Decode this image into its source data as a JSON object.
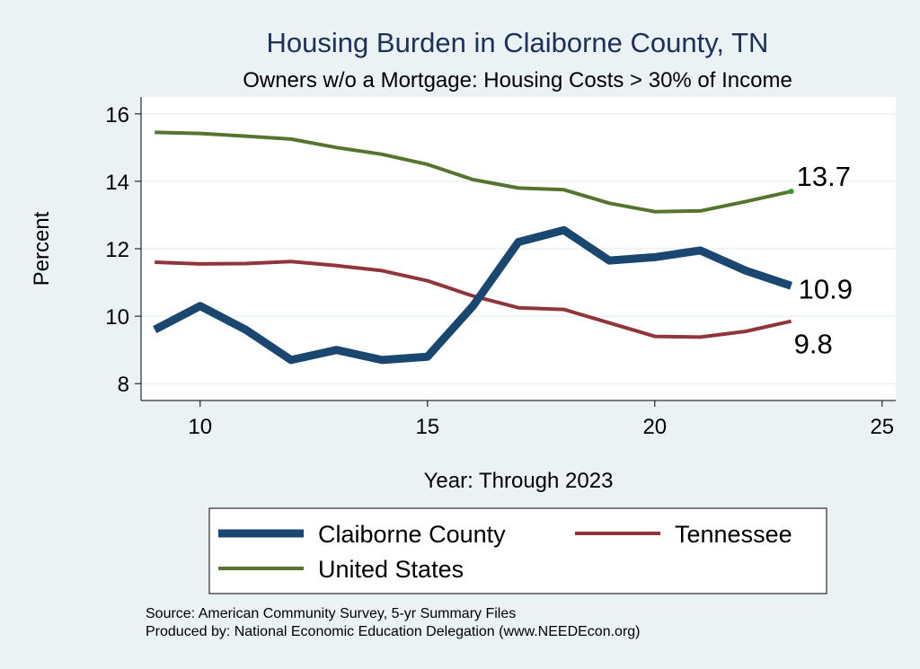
{
  "chart_data": {
    "type": "line",
    "title": "Housing Burden in Claiborne County, TN",
    "subtitle": "Owners w/o a Mortgage: Housing Costs > 30% of Income",
    "xlabel": "Year: Through 2023",
    "ylabel": "Percent",
    "xlim": [
      8.7,
      25.3
    ],
    "ylim": [
      7.5,
      16.5
    ],
    "x_ticks": [
      10,
      15,
      20,
      25
    ],
    "y_ticks": [
      8,
      10,
      12,
      14,
      16
    ],
    "grid": true,
    "legend_position": "bottom",
    "x": [
      9,
      10,
      11,
      12,
      13,
      14,
      15,
      16,
      17,
      18,
      19,
      20,
      21,
      22,
      23
    ],
    "series": [
      {
        "name": "Claiborne County",
        "color": "#1a476f",
        "width": 9,
        "values": [
          9.6,
          10.3,
          9.6,
          8.7,
          9.0,
          8.7,
          8.8,
          10.3,
          12.2,
          12.55,
          11.65,
          11.75,
          11.95,
          11.35,
          10.9
        ],
        "end_label": "10.9"
      },
      {
        "name": "Tennessee",
        "color": "#90353b",
        "width": 4,
        "values": [
          11.6,
          11.55,
          11.56,
          11.62,
          11.5,
          11.35,
          11.05,
          10.6,
          10.25,
          10.2,
          9.8,
          9.4,
          9.38,
          9.55,
          9.85
        ],
        "end_label": "9.8"
      },
      {
        "name": "United States",
        "color": "#55752f",
        "width": 4,
        "values": [
          15.45,
          15.42,
          15.34,
          15.25,
          15.0,
          14.8,
          14.5,
          14.05,
          13.8,
          13.75,
          13.35,
          13.1,
          13.12,
          13.4,
          13.7
        ],
        "end_label": "13.7"
      }
    ],
    "source_lines": [
      "Source: American Community Survey, 5-yr Summary Files",
      "Produced by: National Economic Education Delegation (www.NEEDEcon.org)"
    ]
  }
}
